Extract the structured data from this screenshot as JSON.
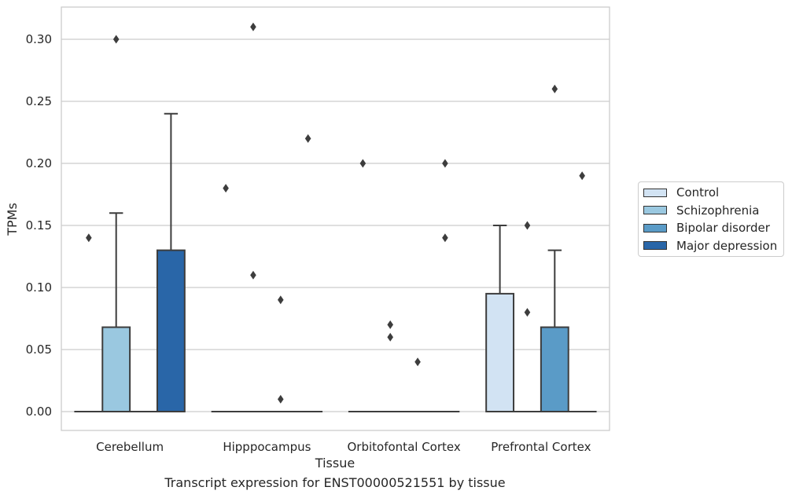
{
  "chart_data": {
    "type": "box",
    "title": "",
    "xlabel": "Tissue",
    "ylabel": "TPMs",
    "caption": "Transcript expression for ENST00000521551 by tissue",
    "ylim": [
      -0.015,
      0.325
    ],
    "yticks": [
      "0.00",
      "0.05",
      "0.10",
      "0.15",
      "0.20",
      "0.25",
      "0.30"
    ],
    "grid": "horizontal",
    "legend_position": "right",
    "categories": [
      "Cerebellum",
      "Hipppocampus",
      "Orbitofontal Cortex",
      "Prefrontal Cortex"
    ],
    "series": [
      {
        "name": "Control",
        "color": "#d2e3f3",
        "boxes": [
          {
            "q1": 0,
            "median": 0,
            "q3": 0,
            "whisker_low": 0,
            "whisker_high": 0,
            "outliers": [
              0.14
            ]
          },
          {
            "q1": 0,
            "median": 0,
            "q3": 0,
            "whisker_low": 0,
            "whisker_high": 0,
            "outliers": [
              0.18
            ]
          },
          {
            "q1": 0,
            "median": 0,
            "q3": 0,
            "whisker_low": 0,
            "whisker_high": 0,
            "outliers": [
              0.2
            ]
          },
          {
            "q1": 0,
            "median": 0,
            "q3": 0.095,
            "whisker_low": 0,
            "whisker_high": 0.15,
            "outliers": []
          }
        ]
      },
      {
        "name": "Schizophrenia",
        "color": "#9ac8e0",
        "boxes": [
          {
            "q1": 0,
            "median": 0,
            "q3": 0.068,
            "whisker_low": 0,
            "whisker_high": 0.16,
            "outliers": [
              0.3
            ]
          },
          {
            "q1": 0,
            "median": 0,
            "q3": 0,
            "whisker_low": 0,
            "whisker_high": 0,
            "outliers": [
              0.31,
              0.11
            ]
          },
          {
            "q1": 0,
            "median": 0,
            "q3": 0,
            "whisker_low": 0,
            "whisker_high": 0,
            "outliers": [
              0.07,
              0.06
            ]
          },
          {
            "q1": 0,
            "median": 0,
            "q3": 0,
            "whisker_low": 0,
            "whisker_high": 0,
            "outliers": [
              0.15,
              0.08
            ]
          }
        ]
      },
      {
        "name": "Bipolar disorder",
        "color": "#5a9bc7",
        "boxes": [
          {
            "q1": 0,
            "median": 0,
            "q3": 0,
            "whisker_low": 0,
            "whisker_high": 0,
            "outliers": []
          },
          {
            "q1": 0,
            "median": 0,
            "q3": 0,
            "whisker_low": 0,
            "whisker_high": 0,
            "outliers": [
              0.09,
              0.01
            ]
          },
          {
            "q1": 0,
            "median": 0,
            "q3": 0,
            "whisker_low": 0,
            "whisker_high": 0,
            "outliers": [
              0.04
            ]
          },
          {
            "q1": 0,
            "median": 0,
            "q3": 0.068,
            "whisker_low": 0,
            "whisker_high": 0.13,
            "outliers": [
              0.26
            ]
          }
        ]
      },
      {
        "name": "Major depression",
        "color": "#2966a8",
        "boxes": [
          {
            "q1": 0,
            "median": 0,
            "q3": 0.13,
            "whisker_low": 0,
            "whisker_high": 0.24,
            "outliers": []
          },
          {
            "q1": 0,
            "median": 0,
            "q3": 0,
            "whisker_low": 0,
            "whisker_high": 0,
            "outliers": [
              0.22
            ]
          },
          {
            "q1": 0,
            "median": 0,
            "q3": 0,
            "whisker_low": 0,
            "whisker_high": 0,
            "outliers": [
              0.2,
              0.14
            ]
          },
          {
            "q1": 0,
            "median": 0,
            "q3": 0,
            "whisker_low": 0,
            "whisker_high": 0,
            "outliers": [
              0.19
            ]
          }
        ]
      }
    ]
  }
}
